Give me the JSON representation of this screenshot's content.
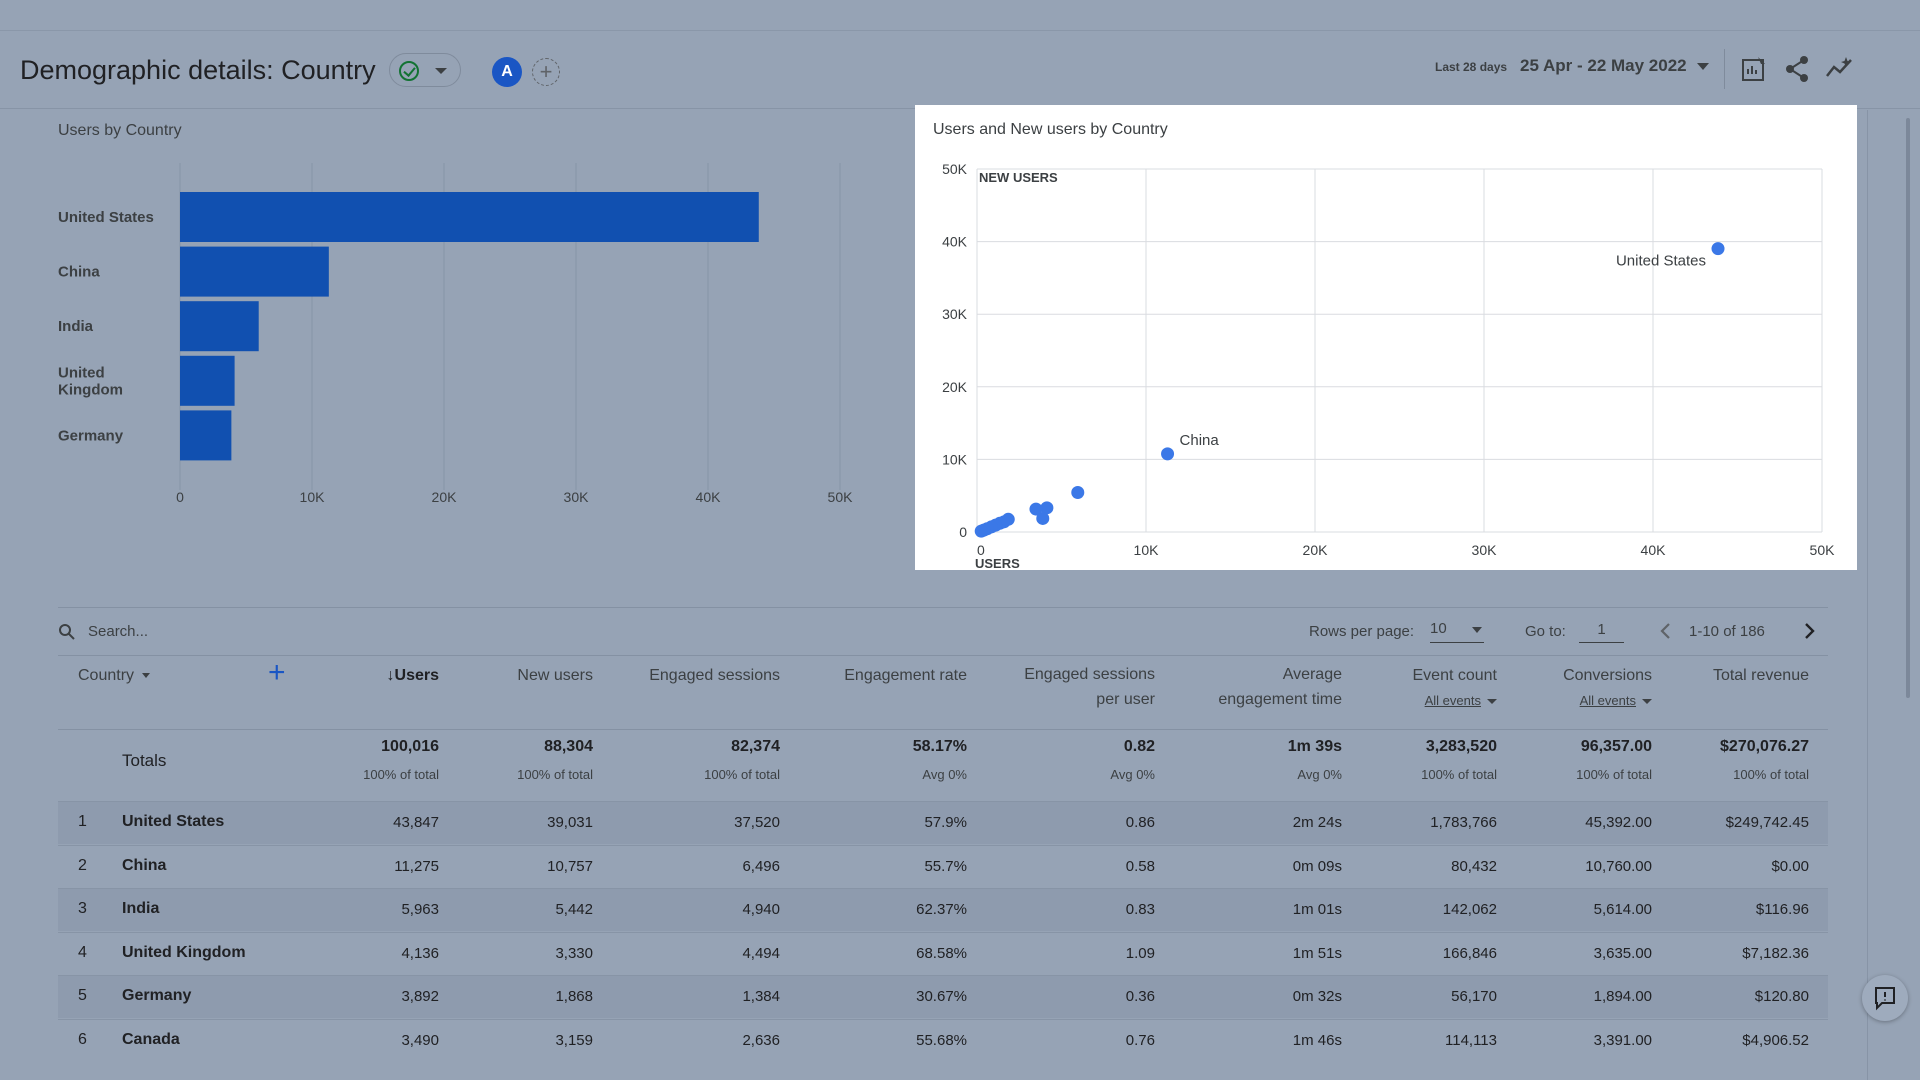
{
  "header": {
    "title": "Demographic details: Country",
    "avatar_letter": "A",
    "add_comparison": "+",
    "date_prefix": "Last 28 days",
    "date_range": "25 Apr - 22 May 2022"
  },
  "bar_chart_card": {
    "title": "Users by Country"
  },
  "scatter_card": {
    "title": "Users and New users by Country"
  },
  "chart_data": [
    {
      "type": "bar",
      "orientation": "horizontal",
      "title": "Users by Country",
      "categories": [
        "United States",
        "China",
        "India",
        "United Kingdom",
        "Germany"
      ],
      "category_labels": [
        [
          "United States"
        ],
        [
          "China"
        ],
        [
          "India"
        ],
        [
          "United",
          "Kingdom"
        ],
        [
          "Germany"
        ]
      ],
      "values": [
        43847,
        11275,
        5963,
        4136,
        3892
      ],
      "xlim": [
        0,
        50000
      ],
      "xticks": [
        "0",
        "10K",
        "20K",
        "30K",
        "40K",
        "50K"
      ],
      "grid": true,
      "color": "#1150b0"
    },
    {
      "type": "scatter",
      "title": "Users and New users by Country",
      "xlabel": "USERS",
      "ylabel": "NEW USERS",
      "xlim": [
        0,
        50000
      ],
      "ylim": [
        0,
        50000
      ],
      "xticks": [
        "0",
        "10K",
        "20K",
        "30K",
        "40K",
        "50K"
      ],
      "yticks": [
        "0",
        "10K",
        "20K",
        "30K",
        "40K",
        "50K"
      ],
      "grid": true,
      "color": "#3b78e7",
      "points": [
        {
          "x": 43847,
          "y": 39031,
          "label": "United States"
        },
        {
          "x": 11275,
          "y": 10757,
          "label": "China"
        },
        {
          "x": 5963,
          "y": 5442,
          "label": ""
        },
        {
          "x": 4136,
          "y": 3330,
          "label": ""
        },
        {
          "x": 3892,
          "y": 1868,
          "label": ""
        },
        {
          "x": 3490,
          "y": 3159,
          "label": ""
        },
        {
          "x": 1850,
          "y": 1750,
          "label": ""
        },
        {
          "x": 1600,
          "y": 1400,
          "label": ""
        },
        {
          "x": 1350,
          "y": 1200,
          "label": ""
        },
        {
          "x": 1100,
          "y": 950,
          "label": ""
        },
        {
          "x": 850,
          "y": 700,
          "label": ""
        },
        {
          "x": 600,
          "y": 450,
          "label": ""
        },
        {
          "x": 400,
          "y": 250,
          "label": ""
        },
        {
          "x": 250,
          "y": 120,
          "label": ""
        }
      ]
    }
  ],
  "table": {
    "search_placeholder": "Search...",
    "rows_per_page_label": "Rows per page:",
    "rows_per_page_value": "10",
    "goto_label": "Go to:",
    "goto_value": "1",
    "page_range": "1-10 of 186",
    "dimension_header": "Country",
    "add_dimension": "+",
    "columns": [
      {
        "line1": "↓Users",
        "line2": "",
        "sub": ""
      },
      {
        "line1": "New users",
        "line2": "",
        "sub": ""
      },
      {
        "line1": "Engaged sessions",
        "line2": "",
        "sub": ""
      },
      {
        "line1": "Engagement rate",
        "line2": "",
        "sub": ""
      },
      {
        "line1": "Engaged sessions",
        "line2": "per user",
        "sub": ""
      },
      {
        "line1": "Average",
        "line2": "engagement time",
        "sub": ""
      },
      {
        "line1": "Event count",
        "line2": "",
        "sub": "All events"
      },
      {
        "line1": "Conversions",
        "line2": "",
        "sub": "All events"
      },
      {
        "line1": "Total revenue",
        "line2": "",
        "sub": ""
      }
    ],
    "totals_label": "Totals",
    "totals": [
      {
        "value": "100,016",
        "sub": "100% of total"
      },
      {
        "value": "88,304",
        "sub": "100% of total"
      },
      {
        "value": "82,374",
        "sub": "100% of total"
      },
      {
        "value": "58.17%",
        "sub": "Avg 0%"
      },
      {
        "value": "0.82",
        "sub": "Avg 0%"
      },
      {
        "value": "1m 39s",
        "sub": "Avg 0%"
      },
      {
        "value": "3,283,520",
        "sub": "100% of total"
      },
      {
        "value": "96,357.00",
        "sub": "100% of total"
      },
      {
        "value": "$270,076.27",
        "sub": "100% of total"
      }
    ],
    "rows": [
      {
        "idx": "1",
        "country": "United States",
        "cells": [
          "43,847",
          "39,031",
          "37,520",
          "57.9%",
          "0.86",
          "2m 24s",
          "1,783,766",
          "45,392.00",
          "$249,742.45"
        ]
      },
      {
        "idx": "2",
        "country": "China",
        "cells": [
          "11,275",
          "10,757",
          "6,496",
          "55.7%",
          "0.58",
          "0m 09s",
          "80,432",
          "10,760.00",
          "$0.00"
        ]
      },
      {
        "idx": "3",
        "country": "India",
        "cells": [
          "5,963",
          "5,442",
          "4,940",
          "62.37%",
          "0.83",
          "1m 01s",
          "142,062",
          "5,614.00",
          "$116.96"
        ]
      },
      {
        "idx": "4",
        "country": "United Kingdom",
        "cells": [
          "4,136",
          "3,330",
          "4,494",
          "68.58%",
          "1.09",
          "1m 51s",
          "166,846",
          "3,635.00",
          "$7,182.36"
        ]
      },
      {
        "idx": "5",
        "country": "Germany",
        "cells": [
          "3,892",
          "1,868",
          "1,384",
          "30.67%",
          "0.36",
          "0m 32s",
          "56,170",
          "1,894.00",
          "$120.80"
        ]
      },
      {
        "idx": "6",
        "country": "Canada",
        "cells": [
          "3,490",
          "3,159",
          "2,636",
          "55.68%",
          "0.76",
          "1m 46s",
          "114,113",
          "3,391.00",
          "$4,906.52"
        ]
      }
    ]
  }
}
